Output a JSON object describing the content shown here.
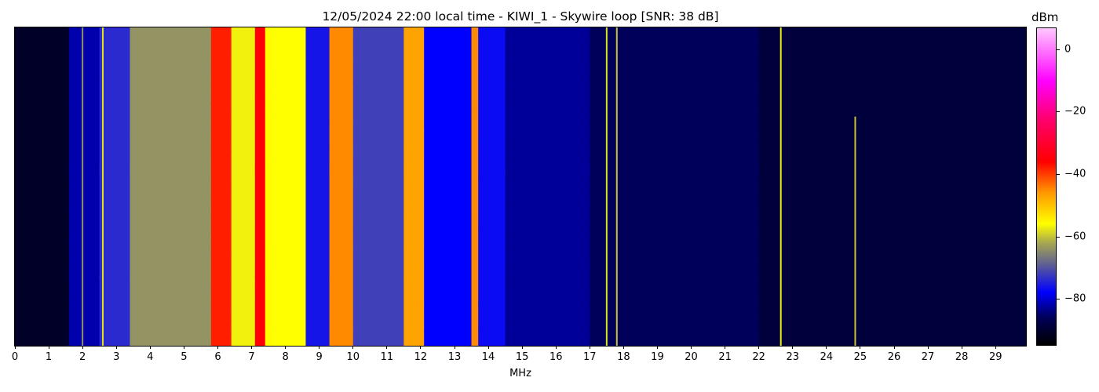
{
  "chart_data": {
    "type": "heatmap",
    "title": "12/05/2024 22:00 local time - KIWI_1 - Skywire loop [SNR: 38 dB]",
    "xlabel": "MHz",
    "ylabel": "",
    "xlim": [
      0,
      29.9
    ],
    "x_ticks": [
      "0",
      "1",
      "2",
      "3",
      "4",
      "5",
      "6",
      "7",
      "8",
      "9",
      "10",
      "11",
      "12",
      "13",
      "14",
      "15",
      "16",
      "17",
      "18",
      "19",
      "20",
      "21",
      "22",
      "23",
      "24",
      "25",
      "26",
      "27",
      "28",
      "29"
    ],
    "colorbar": {
      "label": "dBm",
      "range": [
        -95,
        7
      ],
      "ticks": [
        "0",
        "−20",
        "−40",
        "−60",
        "−80"
      ],
      "tick_values": [
        0,
        -20,
        -40,
        -60,
        -80
      ],
      "colormap": [
        {
          "value": -95,
          "color": "#000000"
        },
        {
          "value": -86,
          "color": "#00005a"
        },
        {
          "value": -78,
          "color": "#0000ff"
        },
        {
          "value": -68,
          "color": "#6a6a88"
        },
        {
          "value": -62,
          "color": "#a8a850"
        },
        {
          "value": -56,
          "color": "#ffff00"
        },
        {
          "value": -46,
          "color": "#ff9900"
        },
        {
          "value": -36,
          "color": "#ff0000"
        },
        {
          "value": -22,
          "color": "#ff0070"
        },
        {
          "value": -10,
          "color": "#ff00ff"
        },
        {
          "value": 7,
          "color": "#ffc8ff"
        }
      ]
    },
    "bands": [
      {
        "from": 0.0,
        "to": 1.6,
        "dBm": -91
      },
      {
        "from": 1.6,
        "to": 2.5,
        "dBm": -82
      },
      {
        "from": 2.5,
        "to": 3.4,
        "dBm": -74
      },
      {
        "from": 3.4,
        "to": 5.8,
        "dBm": -64
      },
      {
        "from": 5.8,
        "to": 6.4,
        "dBm": -38
      },
      {
        "from": 6.4,
        "to": 7.1,
        "dBm": -57
      },
      {
        "from": 7.1,
        "to": 7.4,
        "dBm": -35
      },
      {
        "from": 7.4,
        "to": 8.6,
        "dBm": -56
      },
      {
        "from": 8.6,
        "to": 9.3,
        "dBm": -76
      },
      {
        "from": 9.3,
        "to": 10.0,
        "dBm": -45
      },
      {
        "from": 10.0,
        "to": 11.5,
        "dBm": -72
      },
      {
        "from": 11.5,
        "to": 12.1,
        "dBm": -47
      },
      {
        "from": 12.1,
        "to": 13.5,
        "dBm": -78
      },
      {
        "from": 13.5,
        "to": 13.7,
        "dBm": -45
      },
      {
        "from": 13.7,
        "to": 14.5,
        "dBm": -77
      },
      {
        "from": 14.5,
        "to": 17.0,
        "dBm": -83
      },
      {
        "from": 17.0,
        "to": 22.0,
        "dBm": -86
      },
      {
        "from": 22.0,
        "to": 29.9,
        "dBm": -89
      }
    ],
    "carriers": [
      {
        "freq": 2.0,
        "dBm": -64
      },
      {
        "freq": 2.6,
        "dBm": -58
      },
      {
        "freq": 17.5,
        "dBm": -58
      },
      {
        "freq": 17.8,
        "dBm": -60
      },
      {
        "freq": 22.65,
        "dBm": -57
      },
      {
        "freq": 24.85,
        "dBm": -60,
        "start_fraction": 0.28
      }
    ]
  }
}
